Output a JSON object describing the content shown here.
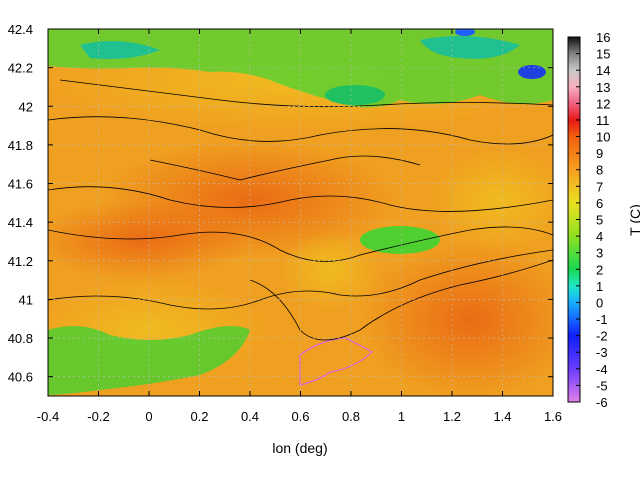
{
  "chart_data": {
    "type": "heatmap",
    "title": "",
    "xlabel": "lon (deg)",
    "ylabel": "",
    "colorbar_label": "T (C)",
    "xlim": [
      -0.4,
      1.6
    ],
    "ylim": [
      40.5,
      42.4
    ],
    "x_ticks": [
      "-0.4",
      "-0.2",
      "0",
      "0.2",
      "0.4",
      "0.6",
      "0.8",
      "1",
      "1.2",
      "1.4",
      "1.6"
    ],
    "y_ticks": [
      "40.6",
      "40.8",
      "41",
      "41.2",
      "41.4",
      "41.6",
      "41.8",
      "42",
      "42.2",
      "42.4"
    ],
    "colorbar_range": [
      -6,
      16
    ],
    "colorbar_ticks": [
      "16",
      "15",
      "14",
      "13",
      "12",
      "11",
      "10",
      "9",
      "8",
      "7",
      "6",
      "5",
      "4",
      "3",
      "2",
      "1",
      "0",
      "-1",
      "-2",
      "-3",
      "-4",
      "-5",
      "-6"
    ],
    "grid": true,
    "contours": true,
    "approx_field_summary": {
      "north_highlands_temperature_range": [
        -2,
        5
      ],
      "central_plain_temperature_range": [
        7,
        10
      ],
      "coastal_southeast_temperature_range": [
        8,
        9
      ],
      "southwest_lowlands_temperature_range": [
        2,
        6
      ]
    }
  }
}
